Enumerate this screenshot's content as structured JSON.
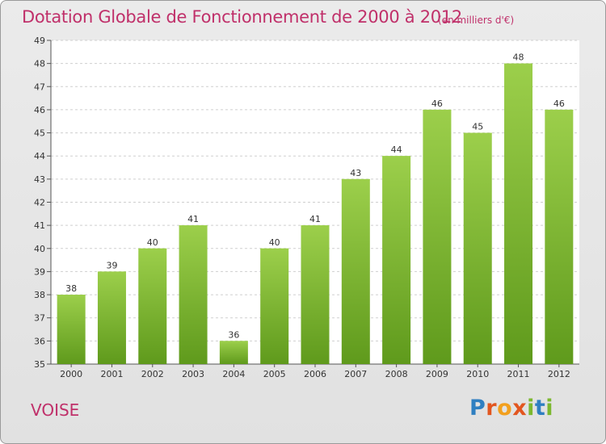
{
  "header": {
    "title": "Dotation Globale de Fonctionnement de 2000 à 2012",
    "unit": "(en milliers d'€)"
  },
  "footer": {
    "commune": "VOISE",
    "logo_letters": [
      "P",
      "r",
      "o",
      "x",
      "i",
      "t",
      "i"
    ],
    "logo_colors": [
      "#2f7fc1",
      "#e2561f",
      "#f2a01e",
      "#e2561f",
      "#7cb82f",
      "#2f7fc1",
      "#7cb82f"
    ]
  },
  "colors": {
    "title": "#c0306a",
    "bar_light": "#9ccf4b",
    "bar_dark": "#5f9a1c",
    "grid": "#cfcfcf",
    "axis": "#555555"
  },
  "chart_data": {
    "type": "bar",
    "title": "Dotation Globale de Fonctionnement de 2000 à 2012",
    "ylabel": "(en milliers d'€)",
    "xlabel": "",
    "categories": [
      "2000",
      "2001",
      "2002",
      "2003",
      "2004",
      "2005",
      "2006",
      "2007",
      "2008",
      "2009",
      "2010",
      "2011",
      "2012"
    ],
    "values": [
      38,
      39,
      40,
      41,
      36,
      40,
      41,
      43,
      44,
      46,
      45,
      48,
      46
    ],
    "ylim": [
      35,
      49
    ],
    "yticks": [
      35,
      36,
      37,
      38,
      39,
      40,
      41,
      42,
      43,
      44,
      45,
      46,
      47,
      48,
      49
    ],
    "grid": true,
    "data_labels": true
  }
}
